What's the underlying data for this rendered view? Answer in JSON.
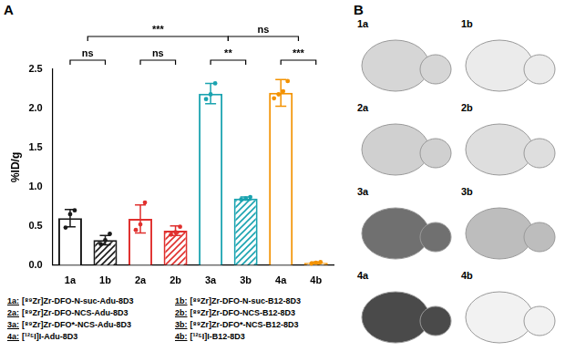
{
  "chart_data": {
    "type": "bar",
    "title": "A",
    "categories": [
      "1a",
      "1b",
      "2a",
      "2b",
      "3a",
      "3b",
      "4a",
      "4b"
    ],
    "values": [
      0.6,
      0.32,
      0.59,
      0.44,
      2.19,
      0.85,
      2.2,
      0.03
    ],
    "errors": [
      0.11,
      0.06,
      0.18,
      0.06,
      0.13,
      0.02,
      0.17,
      0.01
    ],
    "points": [
      [
        0.48,
        0.65,
        0.7
      ],
      [
        0.27,
        0.32,
        0.4
      ],
      [
        0.45,
        0.52,
        0.8
      ],
      [
        0.39,
        0.42,
        0.49
      ],
      [
        2.12,
        2.18,
        2.32
      ],
      [
        0.84,
        0.85,
        0.87
      ],
      [
        2.13,
        2.18,
        2.22,
        2.35
      ],
      [
        0.02,
        0.03,
        0.04
      ]
    ],
    "colors": [
      "#1a1a1a",
      "#1a1a1a",
      "#e0302e",
      "#e0302e",
      "#1aa3b0",
      "#1aa3b0",
      "#f39200",
      "#f39200"
    ],
    "ylabel": "%ID/g",
    "ylim": [
      0,
      2.5
    ],
    "yticks": [
      {
        "value": 0,
        "label": "0.0"
      },
      0.5,
      {
        "value": 1,
        "label": "1.0"
      },
      1.5,
      {
        "value": 2,
        "label": "2.0"
      },
      2.5
    ],
    "grid": false,
    "marker": "circle",
    "comparisons": [
      {
        "from": [
          "1a"
        ],
        "to": [
          "1b"
        ],
        "label": "ns"
      },
      {
        "from": [
          "2a"
        ],
        "to": [
          "2b"
        ],
        "label": "ns"
      },
      {
        "from": [
          "3a"
        ],
        "to": [
          "3b"
        ],
        "label": "**"
      },
      {
        "from": [
          "4a"
        ],
        "to": [
          "4b"
        ],
        "label": "***"
      },
      {
        "from": [
          "1a",
          "1b"
        ],
        "to": [
          "3a",
          "3b"
        ],
        "label": "***"
      },
      {
        "from": [
          "3a",
          "3b"
        ],
        "to": [
          "4a",
          "4b"
        ],
        "label": "ns"
      }
    ],
    "key": [
      {
        "key": "1a:",
        "label": "[⁸⁹Zr]Zr-DFO-N-suc-Adu-8D3"
      },
      {
        "key": "1b:",
        "label": "[⁸⁹Zr]Zr-DFO-N-suc-B12-8D3"
      },
      {
        "key": "2a:",
        "label": "[⁸⁹Zr]Zr-DFO-NCS-Adu-8D3"
      },
      {
        "key": "2b:",
        "label": "[⁸⁹Zr]Zr-DFO-NCS-B12-8D3"
      },
      {
        "key": "3a:",
        "label": "[⁸⁹Zr]Zr-DFO*-NCS-Adu-8D3"
      },
      {
        "key": "3b:",
        "label": "[⁸⁹Zr]Zr-DFO*-NCS-B12-8D3"
      },
      {
        "key": "4a:",
        "label": "[¹²⁵I]I-Adu-8D3"
      },
      {
        "key": "4b:",
        "label": "[¹²⁵I]I-B12-8D3"
      }
    ]
  },
  "panel_b": {
    "title": "B",
    "images": [
      "1a",
      "1b",
      "2a",
      "2b",
      "3a",
      "3b",
      "4a",
      "4b"
    ]
  }
}
